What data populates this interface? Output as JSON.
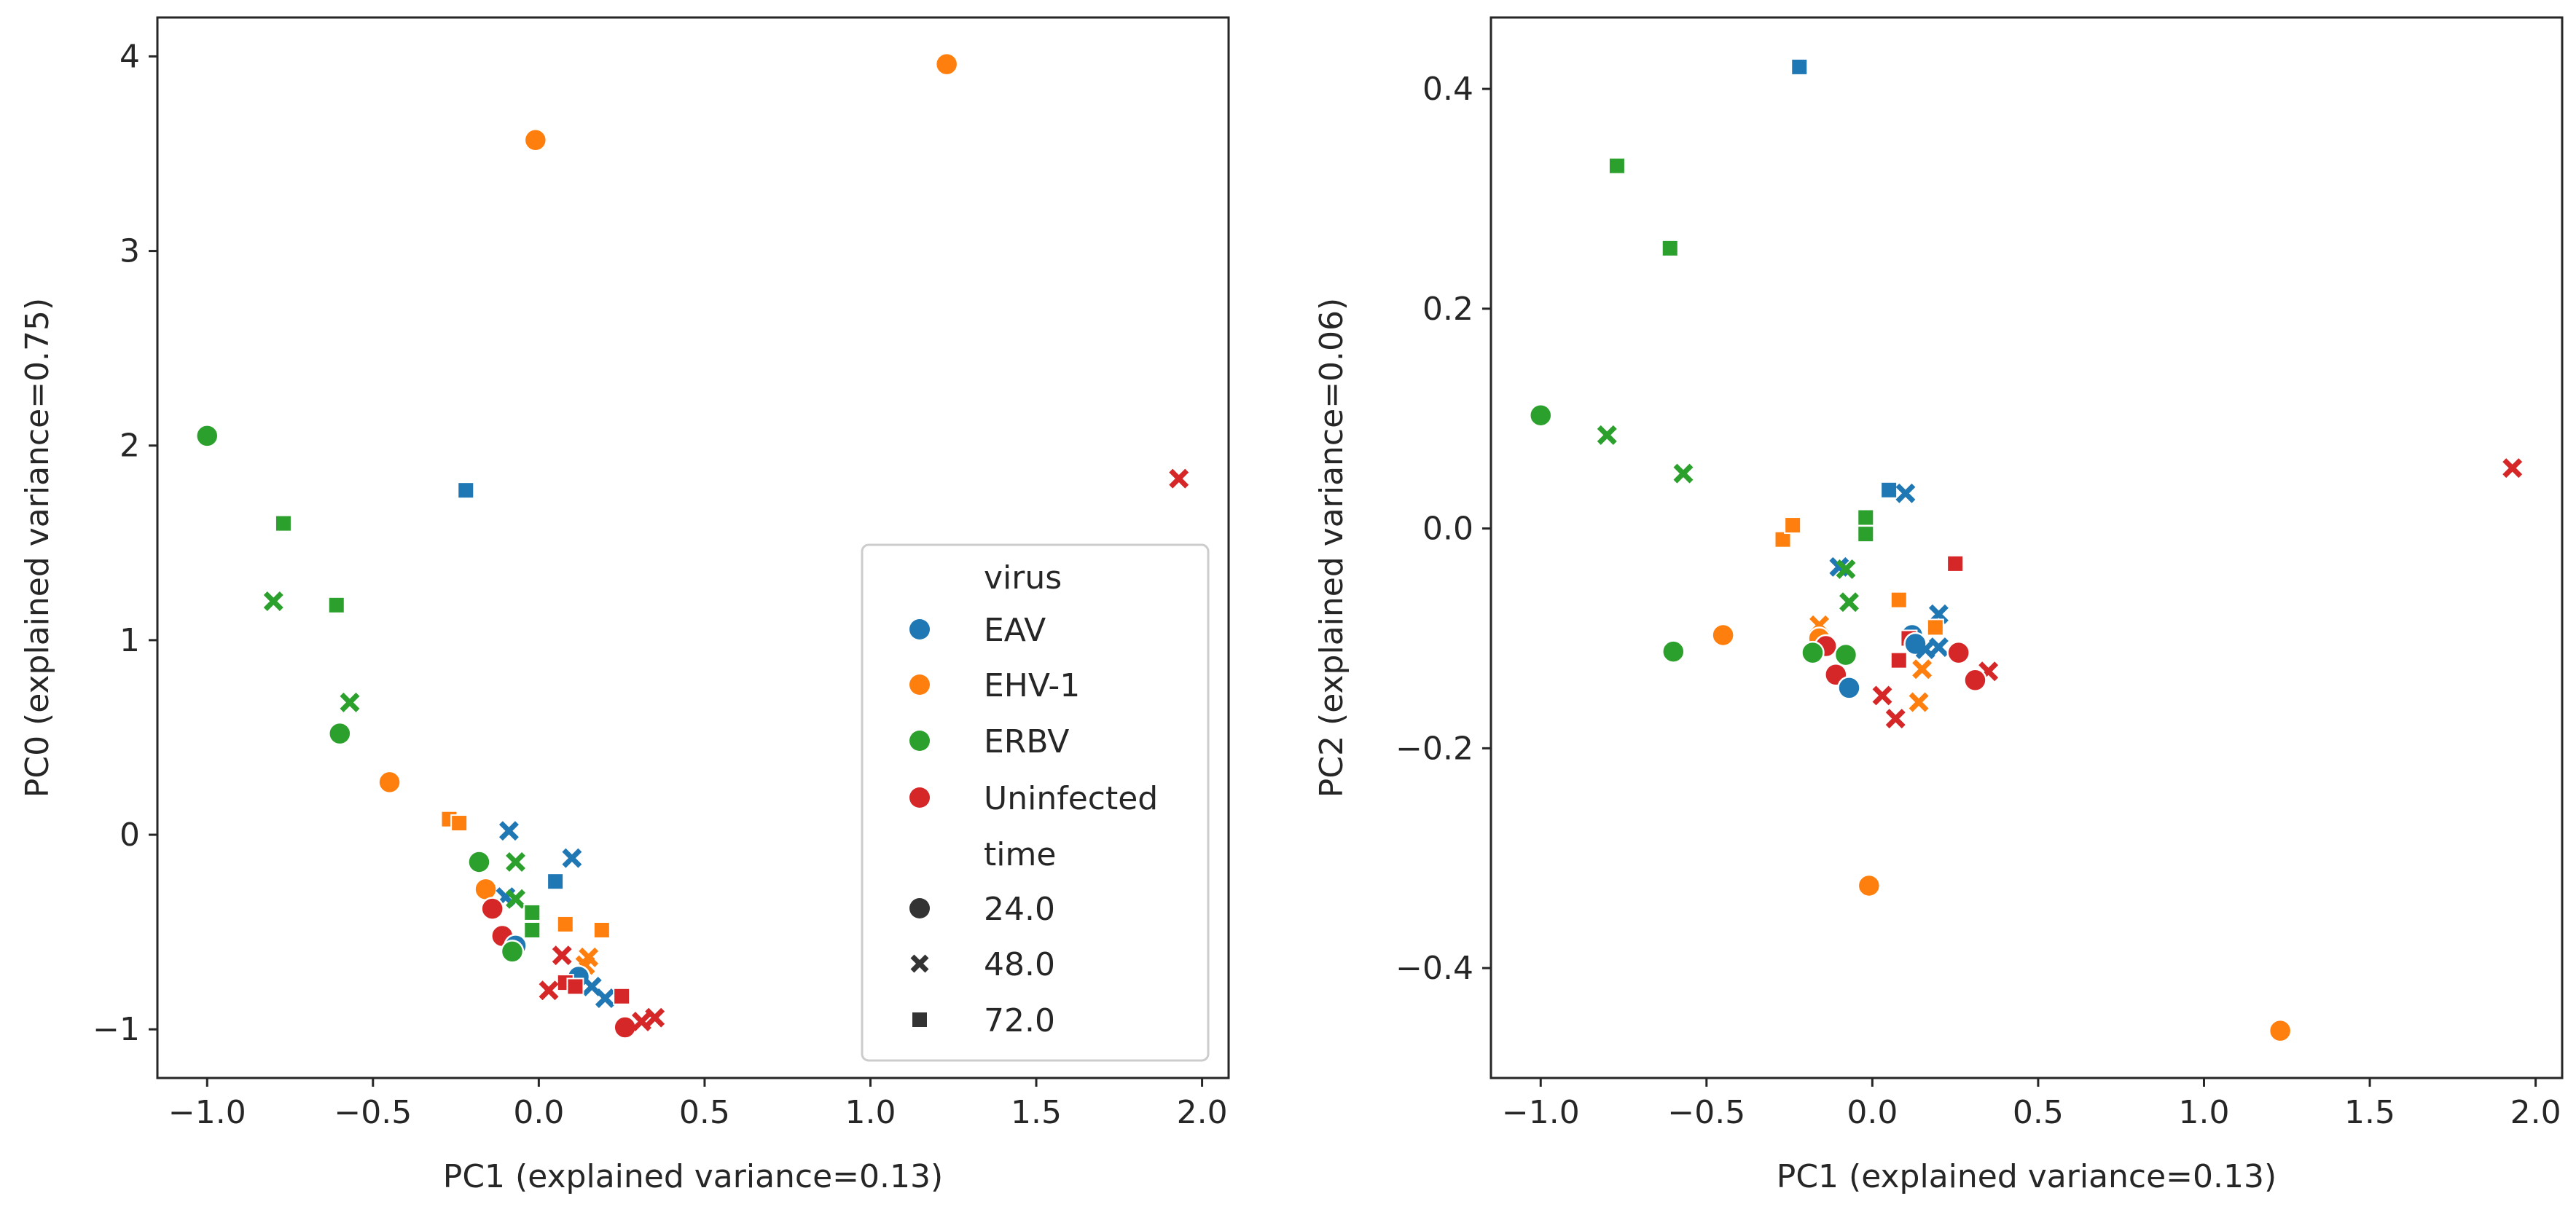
{
  "chart_data": [
    {
      "type": "scatter",
      "title": "",
      "xlabel": "PC1 (explained variance=0.13)",
      "ylabel": "PC0 (explained variance=0.75)",
      "xlim": [
        -1.15,
        2.08
      ],
      "ylim": [
        -1.25,
        4.2
      ],
      "xticks": [
        -1.0,
        -0.5,
        0.0,
        0.5,
        1.0,
        1.5,
        2.0
      ],
      "xtick_labels": [
        "−1.0",
        "−0.5",
        "0.0",
        "0.5",
        "1.0",
        "1.5",
        "2.0"
      ],
      "yticks": [
        -1,
        0,
        1,
        2,
        3,
        4
      ],
      "ytick_labels": [
        "−1",
        "0",
        "1",
        "2",
        "3",
        "4"
      ],
      "grid": false,
      "legend": {
        "placement": "lower-right",
        "hue_title": "virus",
        "hue_entries": [
          {
            "label": "EAV",
            "color": "#1f77b4"
          },
          {
            "label": "EHV-1",
            "color": "#ff7f0e"
          },
          {
            "label": "ERBV",
            "color": "#2ca02c"
          },
          {
            "label": "Uninfected",
            "color": "#d62728"
          }
        ],
        "style_title": "time",
        "style_entries": [
          {
            "label": "24.0",
            "marker": "circle"
          },
          {
            "label": "48.0",
            "marker": "x"
          },
          {
            "label": "72.0",
            "marker": "square"
          }
        ]
      },
      "points": [
        {
          "virus": "ERBV",
          "time": "24.0",
          "x": -1.0,
          "y": 2.05
        },
        {
          "virus": "ERBV",
          "time": "72.0",
          "x": -0.77,
          "y": 1.6
        },
        {
          "virus": "ERBV",
          "time": "48.0",
          "x": -0.8,
          "y": 1.2
        },
        {
          "virus": "ERBV",
          "time": "72.0",
          "x": -0.61,
          "y": 1.18
        },
        {
          "virus": "ERBV",
          "time": "48.0",
          "x": -0.57,
          "y": 0.68
        },
        {
          "virus": "ERBV",
          "time": "24.0",
          "x": -0.6,
          "y": 0.52
        },
        {
          "virus": "EHV-1",
          "time": "24.0",
          "x": -0.45,
          "y": 0.27
        },
        {
          "virus": "EAV",
          "time": "72.0",
          "x": -0.22,
          "y": 1.77
        },
        {
          "virus": "EHV-1",
          "time": "24.0",
          "x": -0.01,
          "y": 3.57
        },
        {
          "virus": "EHV-1",
          "time": "24.0",
          "x": 1.23,
          "y": 3.96
        },
        {
          "virus": "Uninfected",
          "time": "48.0",
          "x": 1.93,
          "y": 1.83
        },
        {
          "virus": "EHV-1",
          "time": "72.0",
          "x": -0.27,
          "y": 0.08
        },
        {
          "virus": "EHV-1",
          "time": "72.0",
          "x": -0.24,
          "y": 0.06
        },
        {
          "virus": "EAV",
          "time": "48.0",
          "x": -0.09,
          "y": 0.02
        },
        {
          "virus": "EAV",
          "time": "48.0",
          "x": 0.1,
          "y": -0.12
        },
        {
          "virus": "ERBV",
          "time": "48.0",
          "x": -0.07,
          "y": -0.14
        },
        {
          "virus": "ERBV",
          "time": "24.0",
          "x": -0.18,
          "y": -0.14
        },
        {
          "virus": "EAV",
          "time": "72.0",
          "x": 0.05,
          "y": -0.24
        },
        {
          "virus": "EHV-1",
          "time": "24.0",
          "x": -0.16,
          "y": -0.28
        },
        {
          "virus": "EAV",
          "time": "48.0",
          "x": -0.1,
          "y": -0.32
        },
        {
          "virus": "ERBV",
          "time": "48.0",
          "x": -0.07,
          "y": -0.33
        },
        {
          "virus": "Uninfected",
          "time": "24.0",
          "x": -0.14,
          "y": -0.38
        },
        {
          "virus": "ERBV",
          "time": "72.0",
          "x": -0.02,
          "y": -0.4
        },
        {
          "virus": "ERBV",
          "time": "72.0",
          "x": -0.02,
          "y": -0.49
        },
        {
          "virus": "EHV-1",
          "time": "72.0",
          "x": 0.08,
          "y": -0.46
        },
        {
          "virus": "EHV-1",
          "time": "72.0",
          "x": 0.19,
          "y": -0.49
        },
        {
          "virus": "Uninfected",
          "time": "24.0",
          "x": -0.11,
          "y": -0.52
        },
        {
          "virus": "EAV",
          "time": "24.0",
          "x": -0.07,
          "y": -0.57
        },
        {
          "virus": "ERBV",
          "time": "24.0",
          "x": -0.08,
          "y": -0.6
        },
        {
          "virus": "Uninfected",
          "time": "48.0",
          "x": 0.07,
          "y": -0.62
        },
        {
          "virus": "EHV-1",
          "time": "48.0",
          "x": 0.15,
          "y": -0.63
        },
        {
          "virus": "EHV-1",
          "time": "48.0",
          "x": 0.14,
          "y": -0.67
        },
        {
          "virus": "EAV",
          "time": "24.0",
          "x": 0.12,
          "y": -0.73
        },
        {
          "virus": "EAV",
          "time": "48.0",
          "x": 0.16,
          "y": -0.78
        },
        {
          "virus": "Uninfected",
          "time": "72.0",
          "x": 0.08,
          "y": -0.76
        },
        {
          "virus": "Uninfected",
          "time": "72.0",
          "x": 0.11,
          "y": -0.78
        },
        {
          "virus": "Uninfected",
          "time": "48.0",
          "x": 0.03,
          "y": -0.8
        },
        {
          "virus": "EAV",
          "time": "48.0",
          "x": 0.2,
          "y": -0.84
        },
        {
          "virus": "Uninfected",
          "time": "72.0",
          "x": 0.25,
          "y": -0.83
        },
        {
          "virus": "Uninfected",
          "time": "24.0",
          "x": 0.26,
          "y": -0.99
        },
        {
          "virus": "Uninfected",
          "time": "48.0",
          "x": 0.31,
          "y": -0.96
        },
        {
          "virus": "Uninfected",
          "time": "48.0",
          "x": 0.35,
          "y": -0.94
        }
      ]
    },
    {
      "type": "scatter",
      "title": "",
      "xlabel": "PC1 (explained variance=0.13)",
      "ylabel": "PC2 (explained variance=0.06)",
      "xlim": [
        -1.15,
        2.08
      ],
      "ylim": [
        -0.5,
        0.465
      ],
      "xticks": [
        -1.0,
        -0.5,
        0.0,
        0.5,
        1.0,
        1.5,
        2.0
      ],
      "xtick_labels": [
        "−1.0",
        "−0.5",
        "0.0",
        "0.5",
        "1.0",
        "1.5",
        "2.0"
      ],
      "yticks": [
        -0.4,
        -0.2,
        0.0,
        0.2,
        0.4
      ],
      "ytick_labels": [
        "−0.4",
        "−0.2",
        "0.0",
        "0.2",
        "0.4"
      ],
      "grid": false,
      "points": [
        {
          "virus": "EAV",
          "time": "72.0",
          "x": -0.22,
          "y": 0.42
        },
        {
          "virus": "ERBV",
          "time": "72.0",
          "x": -0.77,
          "y": 0.33
        },
        {
          "virus": "ERBV",
          "time": "72.0",
          "x": -0.61,
          "y": 0.255
        },
        {
          "virus": "ERBV",
          "time": "24.0",
          "x": -1.0,
          "y": 0.103
        },
        {
          "virus": "ERBV",
          "time": "48.0",
          "x": -0.8,
          "y": 0.085
        },
        {
          "virus": "ERBV",
          "time": "48.0",
          "x": -0.57,
          "y": 0.05
        },
        {
          "virus": "Uninfected",
          "time": "48.0",
          "x": 1.93,
          "y": 0.055
        },
        {
          "virus": "EAV",
          "time": "72.0",
          "x": 0.05,
          "y": 0.035
        },
        {
          "virus": "EAV",
          "time": "48.0",
          "x": 0.1,
          "y": 0.032
        },
        {
          "virus": "ERBV",
          "time": "72.0",
          "x": -0.02,
          "y": 0.01
        },
        {
          "virus": "ERBV",
          "time": "72.0",
          "x": -0.02,
          "y": -0.005
        },
        {
          "virus": "EHV-1",
          "time": "72.0",
          "x": -0.27,
          "y": -0.01
        },
        {
          "virus": "EHV-1",
          "time": "72.0",
          "x": -0.24,
          "y": 0.003
        },
        {
          "virus": "EAV",
          "time": "48.0",
          "x": -0.1,
          "y": -0.035
        },
        {
          "virus": "ERBV",
          "time": "48.0",
          "x": -0.08,
          "y": -0.037
        },
        {
          "virus": "Uninfected",
          "time": "72.0",
          "x": 0.25,
          "y": -0.032
        },
        {
          "virus": "EHV-1",
          "time": "72.0",
          "x": 0.08,
          "y": -0.065
        },
        {
          "virus": "ERBV",
          "time": "48.0",
          "x": -0.07,
          "y": -0.067
        },
        {
          "virus": "EAV",
          "time": "48.0",
          "x": 0.2,
          "y": -0.078
        },
        {
          "virus": "EHV-1",
          "time": "48.0",
          "x": -0.16,
          "y": -0.088
        },
        {
          "virus": "EHV-1",
          "time": "72.0",
          "x": 0.19,
          "y": -0.09
        },
        {
          "virus": "EHV-1",
          "time": "24.0",
          "x": -0.45,
          "y": -0.097
        },
        {
          "virus": "EAV",
          "time": "24.0",
          "x": 0.12,
          "y": -0.097
        },
        {
          "virus": "EHV-1",
          "time": "24.0",
          "x": -0.16,
          "y": -0.1
        },
        {
          "virus": "Uninfected",
          "time": "72.0",
          "x": 0.11,
          "y": -0.1
        },
        {
          "virus": "Uninfected",
          "time": "24.0",
          "x": -0.14,
          "y": -0.107
        },
        {
          "virus": "EAV",
          "time": "24.0",
          "x": 0.13,
          "y": -0.105
        },
        {
          "virus": "EAV",
          "time": "48.0",
          "x": 0.16,
          "y": -0.11
        },
        {
          "virus": "EAV",
          "time": "48.0",
          "x": 0.2,
          "y": -0.108
        },
        {
          "virus": "ERBV",
          "time": "24.0",
          "x": -0.6,
          "y": -0.112
        },
        {
          "virus": "ERBV",
          "time": "24.0",
          "x": -0.18,
          "y": -0.113
        },
        {
          "virus": "ERBV",
          "time": "24.0",
          "x": -0.08,
          "y": -0.115
        },
        {
          "virus": "Uninfected",
          "time": "24.0",
          "x": 0.26,
          "y": -0.113
        },
        {
          "virus": "Uninfected",
          "time": "72.0",
          "x": 0.08,
          "y": -0.12
        },
        {
          "virus": "EHV-1",
          "time": "48.0",
          "x": 0.15,
          "y": -0.128
        },
        {
          "virus": "Uninfected",
          "time": "48.0",
          "x": 0.35,
          "y": -0.13
        },
        {
          "virus": "Uninfected",
          "time": "24.0",
          "x": -0.11,
          "y": -0.133
        },
        {
          "virus": "Uninfected",
          "time": "24.0",
          "x": 0.31,
          "y": -0.138
        },
        {
          "virus": "EAV",
          "time": "24.0",
          "x": -0.07,
          "y": -0.145
        },
        {
          "virus": "Uninfected",
          "time": "48.0",
          "x": 0.03,
          "y": -0.152
        },
        {
          "virus": "EHV-1",
          "time": "48.0",
          "x": 0.14,
          "y": -0.158
        },
        {
          "virus": "Uninfected",
          "time": "48.0",
          "x": 0.07,
          "y": -0.173
        },
        {
          "virus": "EHV-1",
          "time": "24.0",
          "x": -0.01,
          "y": -0.325
        },
        {
          "virus": "EHV-1",
          "time": "24.0",
          "x": 1.23,
          "y": -0.457
        }
      ]
    }
  ]
}
